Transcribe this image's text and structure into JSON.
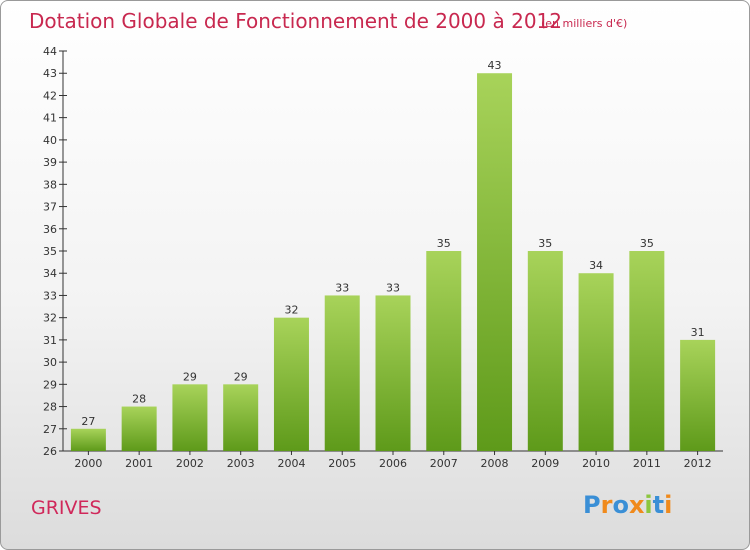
{
  "header": {
    "title": "Dotation Globale de Fonctionnement de 2000 à 2012",
    "subtitle": "(en milliers d'€)"
  },
  "footer": {
    "commune": "GRIVES",
    "logo_text": "Proxiti"
  },
  "colors": {
    "title": "#c8284f",
    "bar_top": "#a8d35a",
    "bar_bottom": "#5e9a1a",
    "logo_letters": [
      "#3a8fd6",
      "#f08a1c",
      "#3a8fd6",
      "#f08a1c",
      "#8cc63f",
      "#3a8fd6",
      "#f08a1c"
    ]
  },
  "chart_data": {
    "type": "bar",
    "categories": [
      "2000",
      "2001",
      "2002",
      "2003",
      "2004",
      "2005",
      "2006",
      "2007",
      "2008",
      "2009",
      "2010",
      "2011",
      "2012"
    ],
    "values": [
      27,
      28,
      29,
      29,
      32,
      33,
      33,
      35,
      43,
      35,
      34,
      35,
      31
    ],
    "ylim": [
      26,
      44
    ],
    "yticks": [
      26,
      27,
      28,
      29,
      30,
      31,
      32,
      33,
      34,
      35,
      36,
      37,
      38,
      39,
      40,
      41,
      42,
      43,
      44
    ],
    "xlabel": "",
    "ylabel": "",
    "grid": false
  }
}
